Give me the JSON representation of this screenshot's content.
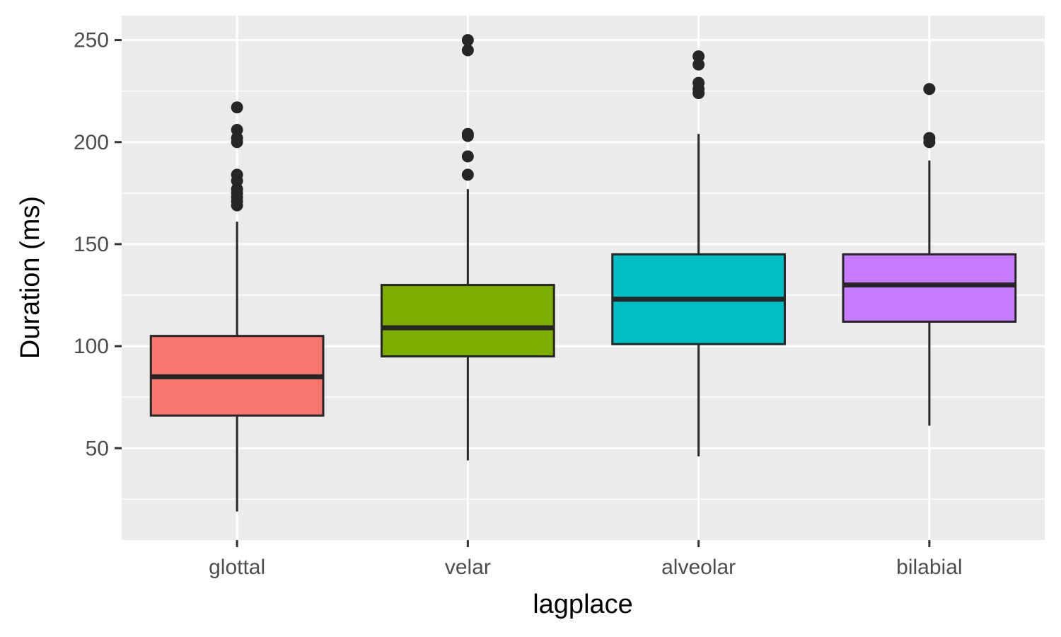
{
  "chart_data": {
    "type": "box",
    "xlabel": "lagplace",
    "ylabel": "Duration (ms)",
    "ylim": [
      5,
      262
    ],
    "yticks": [
      50,
      100,
      150,
      200,
      250
    ],
    "y_minor_ticks": [
      25,
      75,
      125,
      175,
      225
    ],
    "grid": true,
    "legend": "none",
    "categories": [
      "glottal",
      "velar",
      "alveolar",
      "bilabial"
    ],
    "boxes": [
      {
        "category": "glottal",
        "min": 19,
        "q1": 66,
        "median": 85,
        "q3": 105,
        "max": 161,
        "fill": "#F8766D",
        "outliers": [
          169,
          171,
          173,
          175,
          177,
          181,
          184,
          200,
          202,
          206,
          217
        ]
      },
      {
        "category": "velar",
        "min": 44,
        "q1": 95,
        "median": 109,
        "q3": 130,
        "max": 177,
        "fill": "#7CAE00",
        "outliers": [
          184,
          193,
          203,
          204,
          245,
          250
        ]
      },
      {
        "category": "alveolar",
        "min": 46,
        "q1": 101,
        "median": 123,
        "q3": 145,
        "max": 204,
        "fill": "#00BFC4",
        "outliers": [
          224,
          226,
          229,
          238,
          242
        ]
      },
      {
        "category": "bilabial",
        "min": 61,
        "q1": 112,
        "median": 130,
        "q3": 145,
        "max": 191,
        "fill": "#C77CFF",
        "outliers": [
          200,
          202,
          226
        ]
      }
    ]
  }
}
